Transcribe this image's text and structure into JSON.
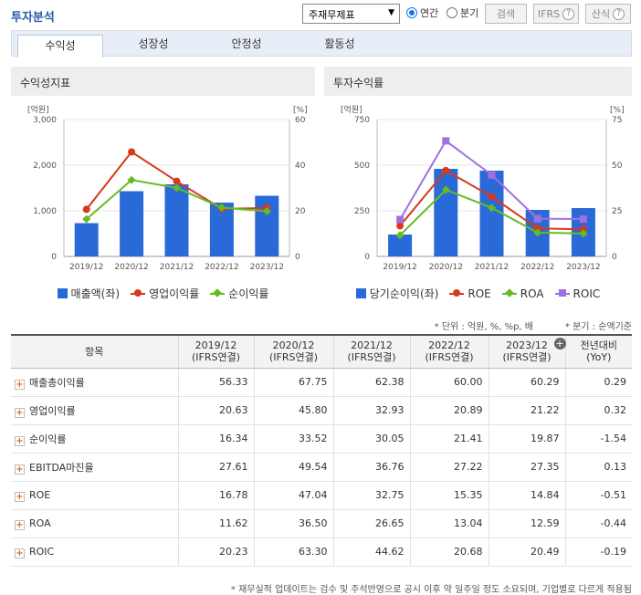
{
  "header": {
    "title": "투자분석",
    "select_value": "주재무제표",
    "radio_annual": "연간",
    "radio_quarter": "분기",
    "search_button": "검색",
    "ifrs_button": "IFRS",
    "formula_button": "산식"
  },
  "tabs": [
    "수익성",
    "성장성",
    "안정성",
    "활동성"
  ],
  "panels": {
    "left_title": "수익성지표",
    "right_title": "투자수익률"
  },
  "chart_data": [
    {
      "type": "bar",
      "title": "수익성지표",
      "categories": [
        "2019/12",
        "2020/12",
        "2021/12",
        "2022/12",
        "2023/12"
      ],
      "ylabel_left": "[억원]",
      "ylabel_right": "[%]",
      "ylim_left": [
        0,
        3000
      ],
      "ylim_right": [
        0,
        60
      ],
      "yticks_left": [
        "3,000",
        "2,000",
        "1,000",
        "0"
      ],
      "yticks_right": [
        "60",
        "40",
        "20",
        "0"
      ],
      "series": [
        {
          "name": "매출액(좌)",
          "kind": "bar",
          "axis": "left",
          "color": "#2a6ad8",
          "values": [
            730,
            1430,
            1580,
            1180,
            1330
          ]
        },
        {
          "name": "영업이익률",
          "kind": "line",
          "axis": "right",
          "marker": "circle",
          "color": "#d63a1a",
          "values": [
            20.63,
            45.8,
            32.93,
            20.89,
            21.22
          ]
        },
        {
          "name": "순이익률",
          "kind": "line",
          "axis": "right",
          "marker": "diamond",
          "color": "#66bb22",
          "values": [
            16.34,
            33.52,
            30.05,
            21.41,
            19.87
          ]
        }
      ]
    },
    {
      "type": "bar",
      "title": "투자수익률",
      "categories": [
        "2019/12",
        "2020/12",
        "2021/12",
        "2022/12",
        "2023/12"
      ],
      "ylabel_left": "[억원]",
      "ylabel_right": "[%]",
      "ylim_left": [
        0,
        750
      ],
      "ylim_right": [
        0,
        75
      ],
      "yticks_left": [
        "750",
        "500",
        "250",
        "0"
      ],
      "yticks_right": [
        "75",
        "50",
        "25",
        "0"
      ],
      "series": [
        {
          "name": "당기순이익(좌)",
          "kind": "bar",
          "axis": "left",
          "color": "#2a6ad8",
          "values": [
            120,
            480,
            470,
            255,
            265
          ]
        },
        {
          "name": "ROE",
          "kind": "line",
          "axis": "right",
          "marker": "circle",
          "color": "#d63a1a",
          "values": [
            16.78,
            47.04,
            32.75,
            15.35,
            14.84
          ]
        },
        {
          "name": "ROA",
          "kind": "line",
          "axis": "right",
          "marker": "diamond",
          "color": "#66bb22",
          "values": [
            11.62,
            36.5,
            26.65,
            13.04,
            12.59
          ]
        },
        {
          "name": "ROIC",
          "kind": "line",
          "axis": "right",
          "marker": "square",
          "color": "#a070e0",
          "values": [
            20.23,
            63.3,
            44.62,
            20.68,
            20.49
          ]
        }
      ]
    }
  ],
  "notes": {
    "unit": "* 단위 : 억원, %, %p, 배",
    "quarter": "* 분기 : 순액기준"
  },
  "table": {
    "headers": [
      {
        "l1": "항목",
        "l2": ""
      },
      {
        "l1": "2019/12",
        "l2": "(IFRS연결)"
      },
      {
        "l1": "2020/12",
        "l2": "(IFRS연결)"
      },
      {
        "l1": "2021/12",
        "l2": "(IFRS연결)"
      },
      {
        "l1": "2022/12",
        "l2": "(IFRS연결)"
      },
      {
        "l1": "2023/12",
        "l2": "(IFRS연결)"
      },
      {
        "l1": "전년대비",
        "l2": "(YoY)"
      }
    ],
    "rows": [
      {
        "label": "매출총이익률",
        "values": [
          "56.33",
          "67.75",
          "62.38",
          "60.00",
          "60.29",
          "0.29"
        ]
      },
      {
        "label": "영업이익률",
        "values": [
          "20.63",
          "45.80",
          "32.93",
          "20.89",
          "21.22",
          "0.32"
        ]
      },
      {
        "label": "순이익률",
        "values": [
          "16.34",
          "33.52",
          "30.05",
          "21.41",
          "19.87",
          "-1.54"
        ]
      },
      {
        "label": "EBITDA마진율",
        "values": [
          "27.61",
          "49.54",
          "36.76",
          "27.22",
          "27.35",
          "0.13"
        ]
      },
      {
        "label": "ROE",
        "values": [
          "16.78",
          "47.04",
          "32.75",
          "15.35",
          "14.84",
          "-0.51"
        ]
      },
      {
        "label": "ROA",
        "values": [
          "11.62",
          "36.50",
          "26.65",
          "13.04",
          "12.59",
          "-0.44"
        ]
      },
      {
        "label": "ROIC",
        "values": [
          "20.23",
          "63.30",
          "44.62",
          "20.68",
          "20.49",
          "-0.19"
        ]
      }
    ]
  },
  "footnote": "* 재무실적 업데이트는 검수 및 주석반영으로 공시 이후 약 일주일 정도 소요되며, 기업별로 다르게 적용됨"
}
